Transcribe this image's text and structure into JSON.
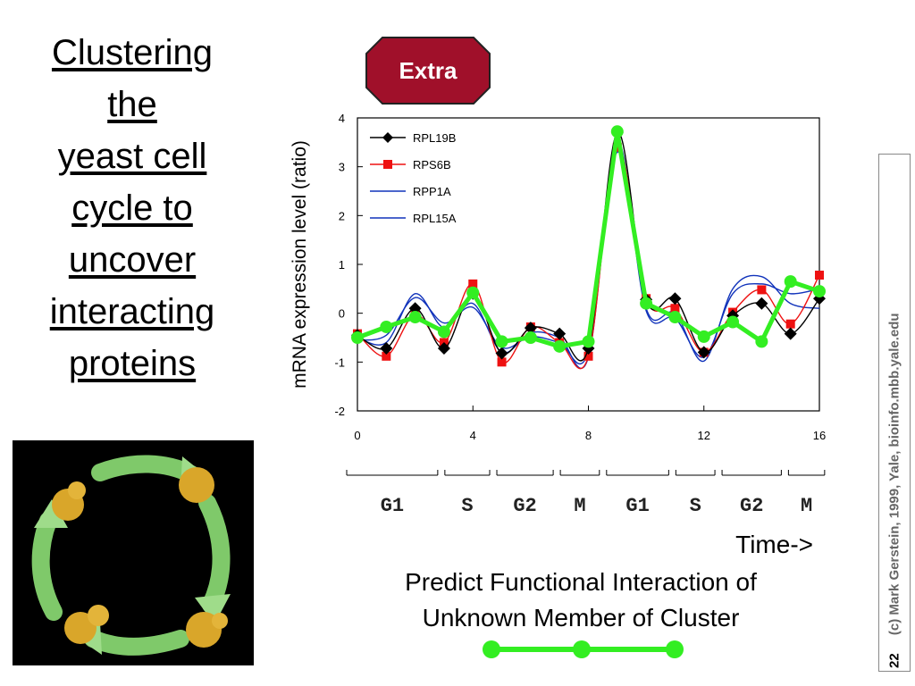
{
  "title_lines": [
    "Clustering",
    "the",
    "yeast cell",
    "cycle to",
    "uncover",
    "interacting",
    "proteins"
  ],
  "badge": "Extra",
  "caption_lines": [
    "Predict Functional Interaction of",
    "Unknown Member of Cluster"
  ],
  "time_label": "Time->",
  "page_number": "22",
  "credit": "(c) Mark Gerstein, 1999, Yale, bioinfo.mbb.yale.edu",
  "colors": {
    "badge": "#a0102a",
    "highlight": "#33ee22",
    "rps6b": "#ee1111",
    "rpp": "#1133bb"
  },
  "chart_data": {
    "type": "line",
    "ylabel": "mRNA expression level (ratio)",
    "xlabel": "",
    "xlim": [
      0,
      16
    ],
    "ylim": [
      -2,
      4
    ],
    "x_ticks": [
      0,
      4,
      8,
      12,
      16
    ],
    "y_ticks": [
      -2,
      -1,
      0,
      1,
      2,
      3,
      4
    ],
    "legend_position": "top-left",
    "phases": [
      "G1",
      "S",
      "G2",
      "M",
      "G1",
      "S",
      "G2",
      "M"
    ],
    "phase_bounds": [
      [
        0,
        3.4
      ],
      [
        3.4,
        5.2
      ],
      [
        5.2,
        7.4
      ],
      [
        7.4,
        9.0
      ],
      [
        9.0,
        11.4
      ],
      [
        11.4,
        13.0
      ],
      [
        13.0,
        15.3
      ],
      [
        15.3,
        16.8
      ]
    ],
    "series": [
      {
        "name": "RPL19B",
        "marker": "diamond",
        "color": "#000000",
        "x": [
          0,
          1,
          2,
          3,
          4,
          5,
          6,
          7,
          8,
          9,
          10,
          11,
          12,
          13,
          14,
          15,
          16
        ],
        "y": [
          -0.45,
          -0.72,
          0.1,
          -0.72,
          0.4,
          -0.82,
          -0.3,
          -0.42,
          -0.72,
          3.7,
          0.28,
          0.3,
          -0.8,
          -0.05,
          0.2,
          -0.42,
          0.3
        ]
      },
      {
        "name": "RPS6B",
        "marker": "square",
        "color": "#ee1111",
        "x": [
          0,
          1,
          2,
          3,
          4,
          5,
          6,
          7,
          8,
          9,
          10,
          11,
          12,
          13,
          14,
          15,
          16
        ],
        "y": [
          -0.42,
          -0.88,
          -0.02,
          -0.6,
          0.6,
          -1.0,
          -0.28,
          -0.6,
          -0.88,
          3.4,
          0.3,
          0.1,
          -0.8,
          0.02,
          0.48,
          -0.22,
          0.78
        ]
      },
      {
        "name": "RPP1A",
        "marker": "none",
        "color": "#1133bb",
        "x": [
          0,
          1,
          2,
          3,
          4,
          5,
          6,
          7,
          8,
          9,
          10,
          11,
          12,
          13,
          14,
          15,
          16
        ],
        "y": [
          -0.5,
          -0.6,
          0.4,
          -0.3,
          0.2,
          -0.8,
          -0.4,
          -0.5,
          -0.9,
          3.5,
          0.1,
          0.0,
          -0.98,
          0.5,
          0.75,
          0.2,
          0.1
        ]
      },
      {
        "name": "RPL15A",
        "marker": "none",
        "color": "#1133bb",
        "x": [
          0,
          1,
          2,
          3,
          4,
          5,
          6,
          7,
          8,
          9,
          10,
          11,
          12,
          13,
          14,
          15,
          16
        ],
        "y": [
          -0.55,
          -0.45,
          0.32,
          -0.2,
          0.12,
          -0.7,
          -0.48,
          -0.6,
          -0.78,
          3.3,
          0.05,
          -0.1,
          -0.9,
          0.4,
          0.6,
          0.4,
          0.5
        ]
      },
      {
        "marker": "circle",
        "color": "#33ee22",
        "x": [
          0,
          1,
          2,
          3,
          4,
          5,
          6,
          7,
          8,
          9,
          10,
          11,
          12,
          13,
          14,
          15,
          16
        ],
        "y": [
          -0.5,
          -0.28,
          -0.08,
          -0.38,
          0.42,
          -0.58,
          -0.5,
          -0.68,
          -0.58,
          3.72,
          0.2,
          -0.08,
          -0.48,
          -0.18,
          -0.58,
          0.65,
          0.45
        ]
      }
    ]
  }
}
